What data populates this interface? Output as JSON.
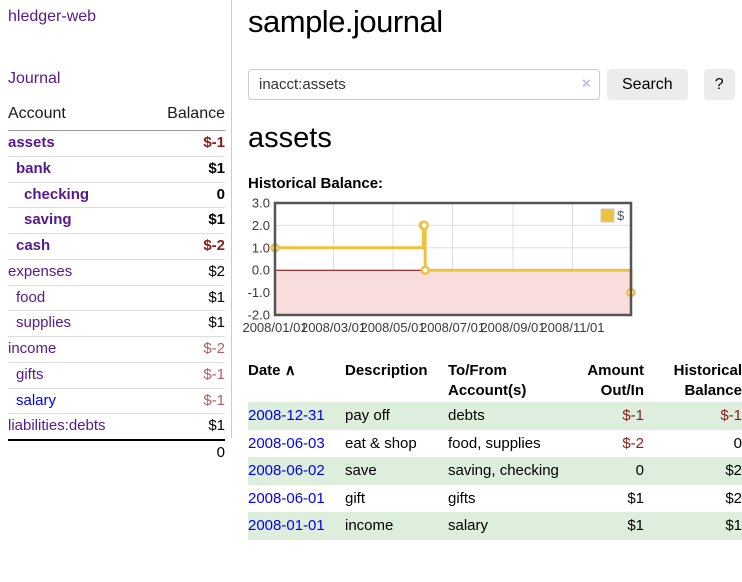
{
  "sidebar": {
    "app_title": "hledger-web",
    "journal_link": "Journal",
    "table": {
      "account_header": "Account",
      "balance_header": "Balance"
    },
    "accounts": [
      {
        "name": "assets",
        "balance": "$-1",
        "depth": 1,
        "bold": true,
        "neg": "strong"
      },
      {
        "name": "bank",
        "balance": "$1",
        "depth": 2,
        "bold": true
      },
      {
        "name": "checking",
        "balance": "0",
        "depth": 3,
        "bold": true
      },
      {
        "name": "saving",
        "balance": "$1",
        "depth": 3,
        "bold": true
      },
      {
        "name": "cash",
        "balance": "$-2",
        "depth": 2,
        "bold": true,
        "neg": "strong"
      },
      {
        "name": "expenses",
        "balance": "$2",
        "depth": 1
      },
      {
        "name": "food",
        "balance": "$1",
        "depth": 2
      },
      {
        "name": "supplies",
        "balance": "$1",
        "depth": 2
      },
      {
        "name": "income",
        "balance": "$-2",
        "depth": 1,
        "neg": "muted"
      },
      {
        "name": "gifts",
        "balance": "$-1",
        "depth": 2,
        "neg": "muted"
      },
      {
        "name": "salary",
        "balance": "$-1",
        "depth": 2,
        "neg": "muted",
        "link_color": "blue"
      },
      {
        "name": "liabilities:debts",
        "balance": "$1",
        "depth": 1
      }
    ],
    "total": "0"
  },
  "main": {
    "title": "sample.journal",
    "account_heading": "assets",
    "chart_label": "Historical Balance:"
  },
  "search": {
    "value": "inacct:assets",
    "clear_icon": "×",
    "button_label": "Search",
    "help_label": "?"
  },
  "register": {
    "headers": {
      "date": "Date",
      "sort_icon": "∧",
      "description": "Description",
      "accounts": "To/From Account(s)",
      "amount": "Amount Out/In",
      "balance": "Historical Balance"
    },
    "rows": [
      {
        "date": "2008-12-31",
        "description": "pay off",
        "accounts": "debts",
        "amount": "$-1",
        "balance": "$-1",
        "amount_neg": true,
        "balance_neg": true
      },
      {
        "date": "2008-06-03",
        "description": "eat & shop",
        "accounts": "food, supplies",
        "amount": "$-2",
        "balance": "0",
        "amount_neg": true
      },
      {
        "date": "2008-06-02",
        "description": "save",
        "accounts": "saving, checking",
        "amount": "0",
        "balance": "$2"
      },
      {
        "date": "2008-06-01",
        "description": "gift",
        "accounts": "gifts",
        "amount": "$1",
        "balance": "$2"
      },
      {
        "date": "2008-01-01",
        "description": "income",
        "accounts": "salary",
        "amount": "$1",
        "balance": "$1"
      }
    ]
  },
  "chart_data": {
    "type": "line",
    "step": true,
    "title": "Historical Balance:",
    "legend": {
      "label": "$",
      "position": "top-right"
    },
    "series": [
      {
        "name": "$",
        "color": "#EDC240",
        "points": [
          [
            "2008-01-01",
            1
          ],
          [
            "2008-06-01",
            2
          ],
          [
            "2008-06-02",
            2
          ],
          [
            "2008-06-03",
            0
          ],
          [
            "2008-12-31",
            -1
          ]
        ]
      }
    ],
    "x_range": [
      "2008-01-01",
      "2008-12-31"
    ],
    "ylim": [
      -2,
      3
    ],
    "yticks": [
      {
        "value": 3,
        "label": "3.0"
      },
      {
        "value": 2,
        "label": "2.0"
      },
      {
        "value": 1,
        "label": "1.0"
      },
      {
        "value": 0,
        "label": "0.0"
      },
      {
        "value": -1,
        "label": "-1.0"
      },
      {
        "value": -2,
        "label": "-2.0"
      }
    ],
    "xticks": [
      {
        "date": "2008-01-01",
        "label": "2008/01/01"
      },
      {
        "date": "2008-03-01",
        "label": "2008/03/01"
      },
      {
        "date": "2008-05-01",
        "label": "2008/05/01"
      },
      {
        "date": "2008-07-01",
        "label": "2008/07/01"
      },
      {
        "date": "2008-09-01",
        "label": "2008/09/01"
      },
      {
        "date": "2008-11-01",
        "label": "2008/11/01"
      }
    ],
    "grid": true,
    "colors": {
      "negative_region": "#f9dcdc",
      "zero_line": "#8b0000",
      "border": "#545454",
      "gridline": "#dedede",
      "accent_negative_strong": "#8b1a1a",
      "accent_negative_muted": "#b06060",
      "link_purple": "#551a8b",
      "link_blue": "#0000ee",
      "row_stripe_green": "#ddeedd"
    }
  }
}
